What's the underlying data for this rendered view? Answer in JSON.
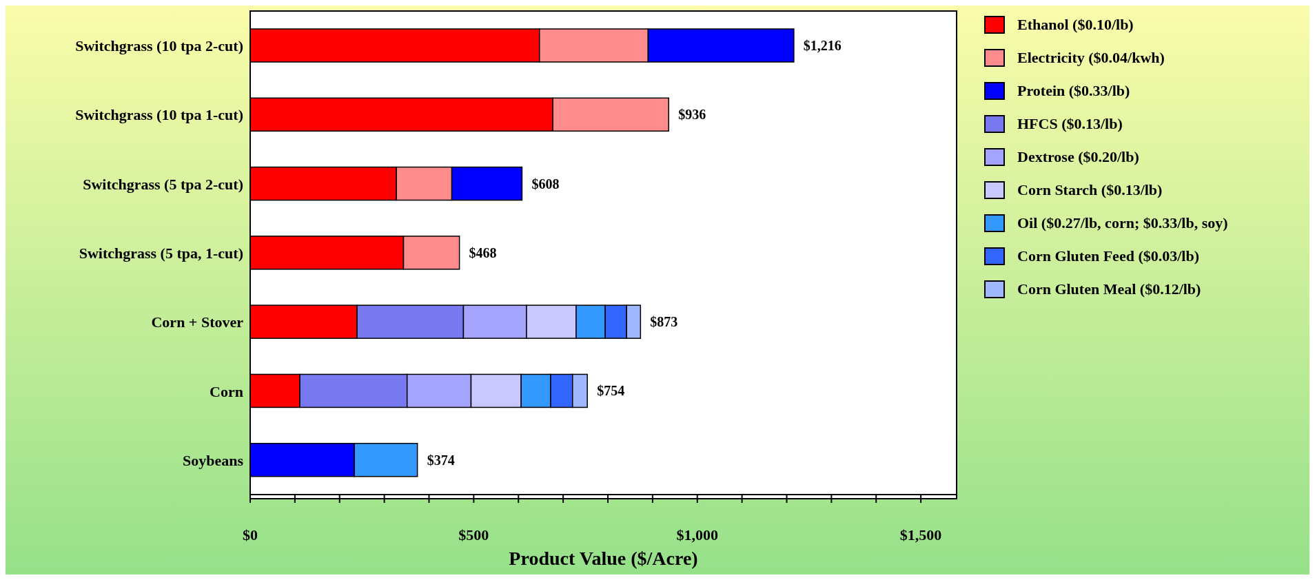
{
  "chart_data": {
    "type": "bar",
    "orientation": "horizontal",
    "stacked": true,
    "categories": [
      "Switchgrass (10 tpa 2-cut)",
      "Switchgrass (10 tpa 1-cut)",
      "Switchgrass (5 tpa 2-cut)",
      "Switchgrass (5 tpa, 1-cut)",
      "Corn + Stover",
      "Corn",
      "Soybeans"
    ],
    "series": [
      {
        "name": "Ethanol ($0.10/lb)",
        "color": "#ff0000",
        "values": [
          647,
          677,
          327,
          343,
          239,
          111,
          null
        ]
      },
      {
        "name": "Electricity ($0.04/kwh)",
        "color": "#ff8c8c",
        "values": [
          243,
          259,
          124,
          125,
          null,
          null,
          null
        ]
      },
      {
        "name": "Protein ($0.33/lb)",
        "color": "#0000ff",
        "values": [
          326,
          null,
          157,
          null,
          null,
          null,
          233
        ]
      },
      {
        "name": "HFCS ($0.13/lb)",
        "color": "#7878f0",
        "values": [
          null,
          null,
          null,
          null,
          238,
          240,
          null
        ]
      },
      {
        "name": "Dextrose ($0.20/lb)",
        "color": "#a4a4ff",
        "values": [
          null,
          null,
          null,
          null,
          141,
          143,
          null
        ]
      },
      {
        "name": "Corn Starch ($0.13/lb)",
        "color": "#c8c8ff",
        "values": [
          null,
          null,
          null,
          null,
          111,
          112,
          null
        ]
      },
      {
        "name": "Oil ($0.27/lb, corn; $0.33/lb, soy)",
        "color": "#3399ff",
        "values": [
          null,
          null,
          null,
          null,
          65,
          66,
          141
        ]
      },
      {
        "name": "Corn Gluten Feed ($0.03/lb)",
        "color": "#3366ff",
        "values": [
          null,
          null,
          null,
          null,
          48,
          49,
          null
        ]
      },
      {
        "name": "Corn Gluten Meal ($0.12/lb)",
        "color": "#9fb8ff",
        "values": [
          null,
          null,
          null,
          null,
          31,
          33,
          null
        ]
      }
    ],
    "totals": [
      "$1,216",
      "$936",
      "$608",
      "$468",
      "$873",
      "$754",
      "$374"
    ],
    "xlabel": "Product Value ($/Acre)",
    "xlim": [
      0,
      1580
    ],
    "xticks": [
      {
        "value": 0,
        "label": "$0"
      },
      {
        "value": 100,
        "label": null
      },
      {
        "value": 200,
        "label": null
      },
      {
        "value": 300,
        "label": null
      },
      {
        "value": 400,
        "label": null
      },
      {
        "value": 500,
        "label": "$500"
      },
      {
        "value": 600,
        "label": null
      },
      {
        "value": 700,
        "label": null
      },
      {
        "value": 800,
        "label": null
      },
      {
        "value": 900,
        "label": null
      },
      {
        "value": 1000,
        "label": "$1,000"
      },
      {
        "value": 1100,
        "label": null
      },
      {
        "value": 1200,
        "label": null
      },
      {
        "value": 1300,
        "label": null
      },
      {
        "value": 1400,
        "label": null
      },
      {
        "value": 1500,
        "label": "$1,500"
      }
    ],
    "legend": "right"
  }
}
